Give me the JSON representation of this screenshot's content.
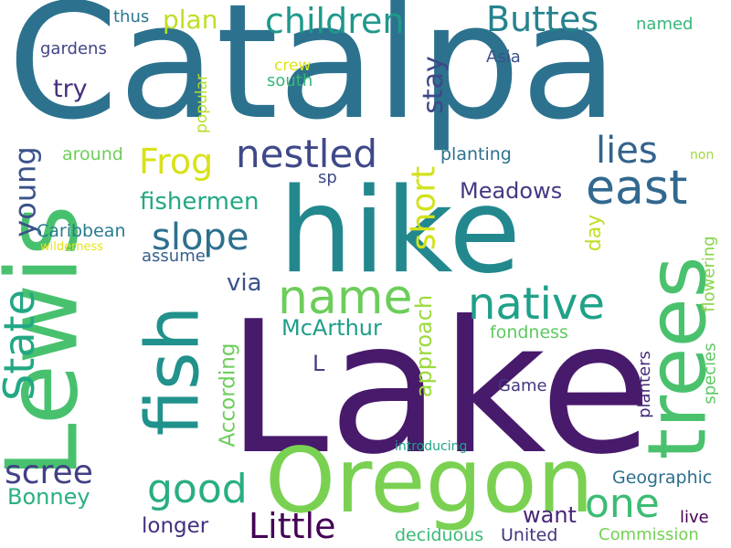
{
  "words": [
    {
      "text": "Catalpa",
      "color": "#2c728e"
    },
    {
      "text": "Lake",
      "color": "#481a6c"
    },
    {
      "text": "hike",
      "color": "#23888e"
    },
    {
      "text": "Lewis",
      "color": "#48c16e"
    },
    {
      "text": "Oregon",
      "color": "#7ad151"
    },
    {
      "text": "trees",
      "color": "#4ac16d"
    },
    {
      "text": "fish",
      "color": "#21918c"
    },
    {
      "text": "children",
      "color": "#1f988b"
    },
    {
      "text": "Buttes",
      "color": "#26828e"
    },
    {
      "text": "plan",
      "color": "#bddf26"
    },
    {
      "text": "thus",
      "color": "#2a788e"
    },
    {
      "text": "gardens",
      "color": "#414487"
    },
    {
      "text": "try",
      "color": "#46307e"
    },
    {
      "text": "named",
      "color": "#35b779"
    },
    {
      "text": "Asia",
      "color": "#3b528b"
    },
    {
      "text": "crew",
      "color": "#dde318"
    },
    {
      "text": "south",
      "color": "#35b779"
    },
    {
      "text": "stay",
      "color": "#3e4989"
    },
    {
      "text": "popular",
      "color": "#b5de2b"
    },
    {
      "text": "east",
      "color": "#31688e"
    },
    {
      "text": "nestled",
      "color": "#3f4889"
    },
    {
      "text": "Frog",
      "color": "#d8e219"
    },
    {
      "text": "lies",
      "color": "#33638d"
    },
    {
      "text": "around",
      "color": "#6ece58"
    },
    {
      "text": "planting",
      "color": "#2d708e"
    },
    {
      "text": "non",
      "color": "#a0da39"
    },
    {
      "text": "sp",
      "color": "#3e4a89"
    },
    {
      "text": "young",
      "color": "#3b528b"
    },
    {
      "text": "fishermen",
      "color": "#22a884"
    },
    {
      "text": "Meadows",
      "color": "#443983"
    },
    {
      "text": "day",
      "color": "#c0df25"
    },
    {
      "text": "short",
      "color": "#d2e21b"
    },
    {
      "text": "slope",
      "color": "#2d708e"
    },
    {
      "text": "flowering",
      "color": "#86d549"
    },
    {
      "text": "Caribbean",
      "color": "#287c8e"
    },
    {
      "text": "wilderness",
      "color": "#e5e419"
    },
    {
      "text": "assume",
      "color": "#355f8d"
    },
    {
      "text": "State",
      "color": "#22a884"
    },
    {
      "text": "via",
      "color": "#3b528b"
    },
    {
      "text": "name",
      "color": "#6ccd5a"
    },
    {
      "text": "native",
      "color": "#1fa188"
    },
    {
      "text": "approach",
      "color": "#9bd93c"
    },
    {
      "text": "McArthur",
      "color": "#1f9e89"
    },
    {
      "text": "fondness",
      "color": "#5ec962"
    },
    {
      "text": "L",
      "color": "#433e85"
    },
    {
      "text": "According",
      "color": "#6ccd5a"
    },
    {
      "text": "species",
      "color": "#5ec962"
    },
    {
      "text": "planters",
      "color": "#472d7b"
    },
    {
      "text": "Game",
      "color": "#453781"
    },
    {
      "text": "introducing",
      "color": "#1fa187"
    },
    {
      "text": "scree",
      "color": "#424086"
    },
    {
      "text": "good",
      "color": "#29af7f"
    },
    {
      "text": "one",
      "color": "#3dbc74"
    },
    {
      "text": "Geographic",
      "color": "#2e6e8e"
    },
    {
      "text": "Bonney",
      "color": "#2ab07f"
    },
    {
      "text": "want",
      "color": "#482576"
    },
    {
      "text": "live",
      "color": "#440154"
    },
    {
      "text": "Little",
      "color": "#440154"
    },
    {
      "text": "longer",
      "color": "#462f7e"
    },
    {
      "text": "deciduous",
      "color": "#3aba76"
    },
    {
      "text": "United",
      "color": "#46337f"
    },
    {
      "text": "Commission",
      "color": "#74d055"
    }
  ]
}
